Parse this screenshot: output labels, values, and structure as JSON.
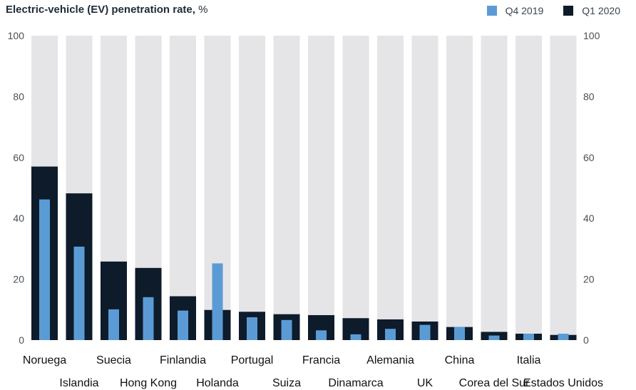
{
  "chart_data": {
    "type": "bar",
    "title": "Electric-vehicle (EV) penetration rate,",
    "title_unit": "%",
    "xlabel": "",
    "ylabel": "",
    "ylim": [
      0,
      100
    ],
    "yticks": [
      0,
      20,
      40,
      60,
      80,
      100
    ],
    "grid": false,
    "legend_position": "top-right",
    "colors": {
      "Q4 2019": "#5b9bd5",
      "Q1 2020": "#0d1b2a",
      "background_band": "#e5e5e8"
    },
    "categories": [
      "Noruega",
      "Islandia",
      "Suecia",
      "Hong Kong",
      "Finlandia",
      "Holanda",
      "Portugal",
      "Suiza",
      "Francia",
      "Dinamarca",
      "Alemania",
      "UK",
      "China",
      "Corea del Sur",
      "Italia",
      "Estados Unidos"
    ],
    "series": [
      {
        "name": "Q4 2019",
        "values": [
          46.2,
          30.7,
          10.1,
          14.1,
          9.7,
          25.2,
          7.5,
          6.6,
          3.2,
          1.9,
          3.7,
          5.0,
          4.3,
          1.5,
          2.1,
          2.1
        ]
      },
      {
        "name": "Q1 2020",
        "values": [
          57.0,
          48.2,
          25.8,
          23.7,
          14.4,
          9.9,
          9.3,
          8.5,
          8.2,
          7.2,
          6.8,
          6.1,
          4.3,
          2.7,
          2.1,
          1.7
        ]
      }
    ]
  }
}
